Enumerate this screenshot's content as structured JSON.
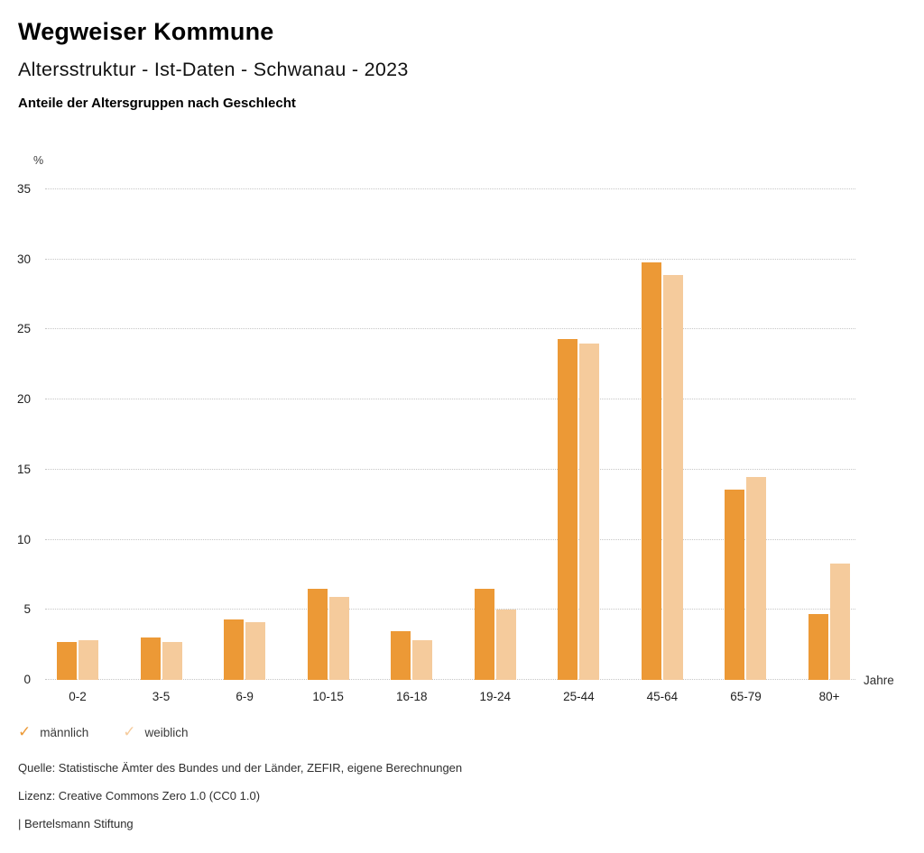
{
  "header": {
    "title": "Wegweiser Kommune",
    "subtitle": "Altersstruktur - Ist-Daten - Schwanau - 2023",
    "caption": "Anteile der Altersgruppen nach Geschlecht"
  },
  "chart_data": {
    "type": "bar",
    "categories": [
      "0-2",
      "3-5",
      "6-9",
      "10-15",
      "16-18",
      "19-24",
      "25-44",
      "45-64",
      "65-79",
      "80+"
    ],
    "series": [
      {
        "name": "männlich",
        "color": "#EC9936",
        "values": [
          2.7,
          3.0,
          4.3,
          6.5,
          3.5,
          6.5,
          24.3,
          29.8,
          13.6,
          4.7
        ]
      },
      {
        "name": "weiblich",
        "color": "#F5CB9C",
        "values": [
          2.8,
          2.7,
          4.1,
          5.9,
          2.8,
          5.0,
          24.0,
          28.9,
          14.5,
          8.3
        ]
      }
    ],
    "title": "Anteile der Altersgruppen nach Geschlecht",
    "xlabel": "Jahre",
    "ylabel": "%",
    "ylim": [
      0,
      35
    ],
    "yticks": [
      0,
      5,
      10,
      15,
      20,
      25,
      30,
      35
    ],
    "grid": "horizontal-dotted",
    "legend_position": "bottom-left",
    "legend_icon": "check"
  },
  "footer": {
    "source": "Quelle: Statistische Ämter des Bundes und der Länder, ZEFIR, eigene Berechnungen",
    "license": "Lizenz: Creative Commons Zero 1.0 (CC0 1.0)",
    "attribution": "| Bertelsmann Stiftung"
  }
}
